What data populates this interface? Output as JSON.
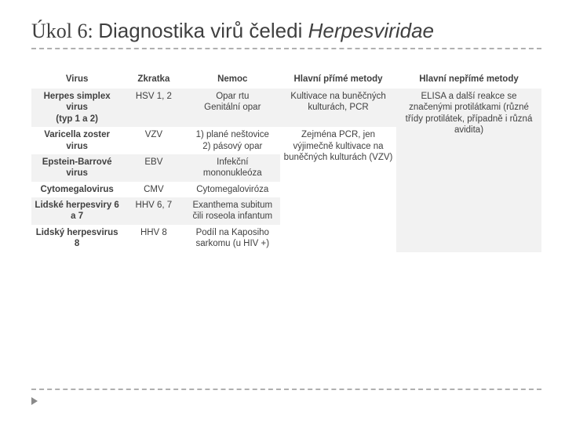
{
  "title": {
    "prefix": "Úkol 6: ",
    "main": "Diagnostika virů čeledi ",
    "ital": "Herpesviridae"
  },
  "table": {
    "headers": [
      "Virus",
      "Zkratka",
      "Nemoc",
      "Hlavní přímé metody",
      "Hlavní nepřímé metody"
    ],
    "rows": [
      {
        "virus": "Herpes simplex virus\n(typ 1 a 2)",
        "abbr": "HSV 1, 2",
        "disease": "Opar rtu\nGenitální opar"
      },
      {
        "virus": "Varicella zoster virus",
        "abbr": "VZV",
        "disease": "1) plané neštovice\n2) pásový opar"
      },
      {
        "virus": "Epstein-Barrové virus",
        "abbr": "EBV",
        "disease": "Infekční mononukleóza"
      },
      {
        "virus": "Cytomegalovirus",
        "abbr": "CMV",
        "disease": "Cytomegaloviróza"
      },
      {
        "virus": "Lidské herpesviry 6 a 7",
        "abbr": "HHV 6, 7",
        "disease": "Exanthema subitum čili roseola infantum"
      },
      {
        "virus": "Lidský herpesvirus 8",
        "abbr": "HHV 8",
        "disease": "Podíl na Kaposiho sarkomu (u HIV +)"
      }
    ],
    "direct_top": "Kultivace na buněčných kulturách, PCR",
    "direct_bottom": "Zejména PCR, jen výjimečně kultivace na buněčných kulturách (VZV)",
    "indirect": "ELISA a další reakce se značenými protilátkami (různé třídy protilátek, případně i různá avidita)"
  },
  "style": {
    "title_color": "#404040",
    "text_color": "#404040",
    "alt_row_bg": "#f2f2f2",
    "divider_color": "#b0b0b0",
    "arrow_color": "#8a8a8a",
    "title_fontsize": 26,
    "table_fontsize": 11.5
  }
}
